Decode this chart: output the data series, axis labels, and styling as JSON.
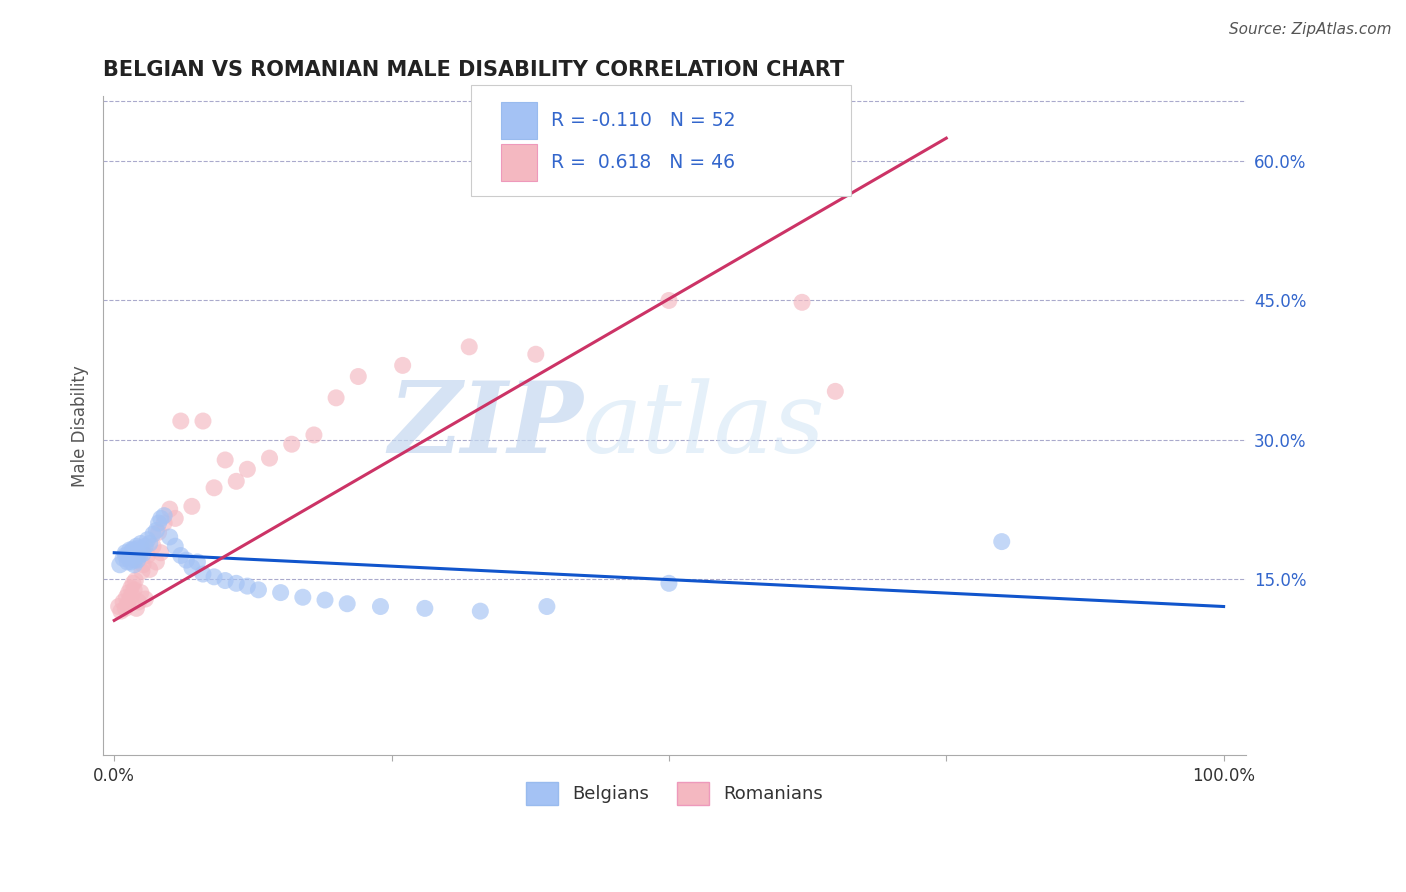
{
  "title": "BELGIAN VS ROMANIAN MALE DISABILITY CORRELATION CHART",
  "source_text": "Source: ZipAtlas.com",
  "xlabel": "",
  "ylabel": "Male Disability",
  "watermark_zip": "ZIP",
  "watermark_atlas": "atlas",
  "xlim": [
    -0.01,
    1.02
  ],
  "ylim": [
    -0.04,
    0.67
  ],
  "ytick_vals_right": [
    0.15,
    0.3,
    0.45,
    0.6
  ],
  "ytick_labels_right": [
    "15.0%",
    "30.0%",
    "45.0%",
    "60.0%"
  ],
  "xtick_vals": [
    0.0,
    0.25,
    0.5,
    0.75,
    1.0
  ],
  "xtick_labels": [
    "0.0%",
    "",
    "",
    "",
    "100.0%"
  ],
  "legend_R1": "-0.110",
  "legend_N1": "52",
  "legend_R2": "0.618",
  "legend_N2": "46",
  "belgian_color": "#a4c2f4",
  "romanian_color": "#f4b8c1",
  "belgian_line_color": "#1155cc",
  "romanian_line_color": "#cc3366",
  "background_color": "#ffffff",
  "grid_color": "#aaaacc",
  "title_color": "#222222",
  "axis_color": "#555555",
  "legend_text_color": "#3366cc",
  "belgians_scatter_x": [
    0.005,
    0.008,
    0.01,
    0.01,
    0.012,
    0.014,
    0.015,
    0.015,
    0.016,
    0.016,
    0.017,
    0.018,
    0.018,
    0.02,
    0.02,
    0.021,
    0.022,
    0.022,
    0.023,
    0.024,
    0.025,
    0.026,
    0.028,
    0.03,
    0.032,
    0.035,
    0.038,
    0.04,
    0.042,
    0.045,
    0.05,
    0.055,
    0.06,
    0.065,
    0.07,
    0.075,
    0.08,
    0.09,
    0.1,
    0.11,
    0.12,
    0.13,
    0.15,
    0.17,
    0.19,
    0.21,
    0.24,
    0.28,
    0.33,
    0.39,
    0.5,
    0.8
  ],
  "belgians_scatter_y": [
    0.165,
    0.172,
    0.178,
    0.175,
    0.168,
    0.181,
    0.175,
    0.168,
    0.18,
    0.173,
    0.182,
    0.17,
    0.165,
    0.185,
    0.177,
    0.17,
    0.183,
    0.178,
    0.175,
    0.188,
    0.182,
    0.177,
    0.185,
    0.192,
    0.188,
    0.198,
    0.202,
    0.21,
    0.215,
    0.218,
    0.195,
    0.185,
    0.175,
    0.17,
    0.162,
    0.168,
    0.155,
    0.152,
    0.148,
    0.145,
    0.142,
    0.138,
    0.135,
    0.13,
    0.127,
    0.123,
    0.12,
    0.118,
    0.115,
    0.12,
    0.145,
    0.19
  ],
  "romanians_scatter_x": [
    0.004,
    0.006,
    0.008,
    0.01,
    0.011,
    0.012,
    0.013,
    0.014,
    0.015,
    0.016,
    0.017,
    0.018,
    0.019,
    0.02,
    0.022,
    0.024,
    0.025,
    0.026,
    0.028,
    0.03,
    0.032,
    0.035,
    0.038,
    0.04,
    0.042,
    0.045,
    0.05,
    0.055,
    0.06,
    0.07,
    0.08,
    0.09,
    0.1,
    0.11,
    0.12,
    0.14,
    0.16,
    0.18,
    0.2,
    0.22,
    0.26,
    0.32,
    0.38,
    0.5,
    0.62,
    0.65
  ],
  "romanians_scatter_y": [
    0.12,
    0.115,
    0.125,
    0.118,
    0.13,
    0.122,
    0.135,
    0.128,
    0.14,
    0.132,
    0.145,
    0.138,
    0.148,
    0.118,
    0.125,
    0.135,
    0.158,
    0.165,
    0.128,
    0.175,
    0.16,
    0.185,
    0.168,
    0.2,
    0.178,
    0.21,
    0.225,
    0.215,
    0.32,
    0.228,
    0.32,
    0.248,
    0.278,
    0.255,
    0.268,
    0.28,
    0.295,
    0.305,
    0.345,
    0.368,
    0.38,
    0.4,
    0.392,
    0.45,
    0.448,
    0.352
  ],
  "belgian_trend_x": [
    0.0,
    1.0
  ],
  "belgian_trend_y_start": 0.178,
  "belgian_trend_y_end": 0.12,
  "romanian_trend_x": [
    0.0,
    0.75
  ],
  "romanian_trend_y_start": 0.105,
  "romanian_trend_y_end": 0.625
}
